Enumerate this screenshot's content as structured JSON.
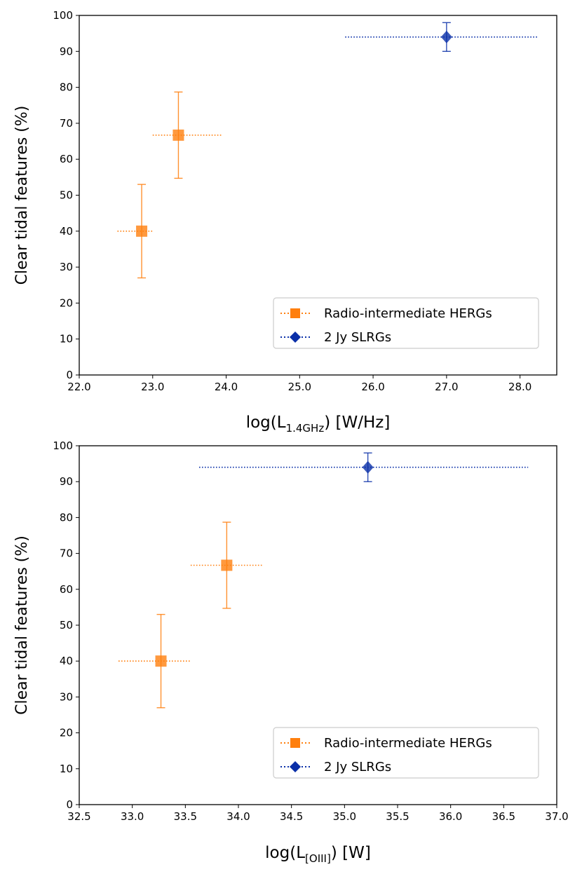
{
  "chart_data": [
    {
      "type": "scatter",
      "xlabel": "log(L",
      "xlabel_sub": "1.4GHz",
      "xlabel_suffix": ") [W/Hz]",
      "ylabel": "Clear tidal features (%)",
      "xlim": [
        22.0,
        28.5
      ],
      "ylim": [
        0,
        100
      ],
      "xticks": [
        22.0,
        23.0,
        24.0,
        25.0,
        26.0,
        27.0,
        28.0
      ],
      "xtick_labels": [
        "22.0",
        "23.0",
        "24.0",
        "25.0",
        "26.0",
        "27.0",
        "28.0"
      ],
      "yticks": [
        0,
        10,
        20,
        30,
        40,
        50,
        60,
        70,
        80,
        90,
        100
      ],
      "ytick_labels": [
        "0",
        "10",
        "20",
        "30",
        "40",
        "50",
        "60",
        "70",
        "80",
        "90",
        "100"
      ],
      "legend_position": "lower-right",
      "series": [
        {
          "name": "Radio-intermediate HERGs",
          "marker": "square",
          "color": "#ff7f0e",
          "points": [
            {
              "x": 22.85,
              "xmin": 22.52,
              "xmax": 23.0,
              "y": 40,
              "ylo": 27,
              "yhi": 53
            },
            {
              "x": 23.35,
              "xmin": 23.0,
              "xmax": 23.95,
              "y": 66.7,
              "ylo": 54.7,
              "yhi": 78.7
            }
          ]
        },
        {
          "name": "2 Jy SLRGs",
          "marker": "diamond",
          "color": "#0a2fa8",
          "points": [
            {
              "x": 27.0,
              "xmin": 25.62,
              "xmax": 28.25,
              "y": 94,
              "ylo": 90,
              "yhi": 98
            }
          ]
        }
      ]
    },
    {
      "type": "scatter",
      "xlabel": "log(L",
      "xlabel_sub": "[OIII]",
      "xlabel_suffix": ") [W]",
      "ylabel": "Clear tidal features (%)",
      "xlim": [
        32.5,
        37.0
      ],
      "ylim": [
        0,
        100
      ],
      "xticks": [
        32.5,
        33.0,
        33.5,
        34.0,
        34.5,
        35.0,
        35.5,
        36.0,
        36.5,
        37.0
      ],
      "xtick_labels": [
        "32.5",
        "33.0",
        "33.5",
        "34.0",
        "34.5",
        "35.0",
        "35.5",
        "36.0",
        "36.5",
        "37.0"
      ],
      "yticks": [
        0,
        10,
        20,
        30,
        40,
        50,
        60,
        70,
        80,
        90,
        100
      ],
      "ytick_labels": [
        "0",
        "10",
        "20",
        "30",
        "40",
        "50",
        "60",
        "70",
        "80",
        "90",
        "100"
      ],
      "legend_position": "lower-right",
      "series": [
        {
          "name": "Radio-intermediate HERGs",
          "marker": "square",
          "color": "#ff7f0e",
          "points": [
            {
              "x": 33.27,
              "xmin": 32.87,
              "xmax": 33.55,
              "y": 40,
              "ylo": 27,
              "yhi": 53
            },
            {
              "x": 33.89,
              "xmin": 33.55,
              "xmax": 34.23,
              "y": 66.7,
              "ylo": 54.7,
              "yhi": 78.7
            }
          ]
        },
        {
          "name": "2 Jy SLRGs",
          "marker": "diamond",
          "color": "#0a2fa8",
          "points": [
            {
              "x": 35.22,
              "xmin": 33.63,
              "xmax": 36.73,
              "y": 94,
              "ylo": 90,
              "yhi": 98
            }
          ]
        }
      ]
    }
  ]
}
